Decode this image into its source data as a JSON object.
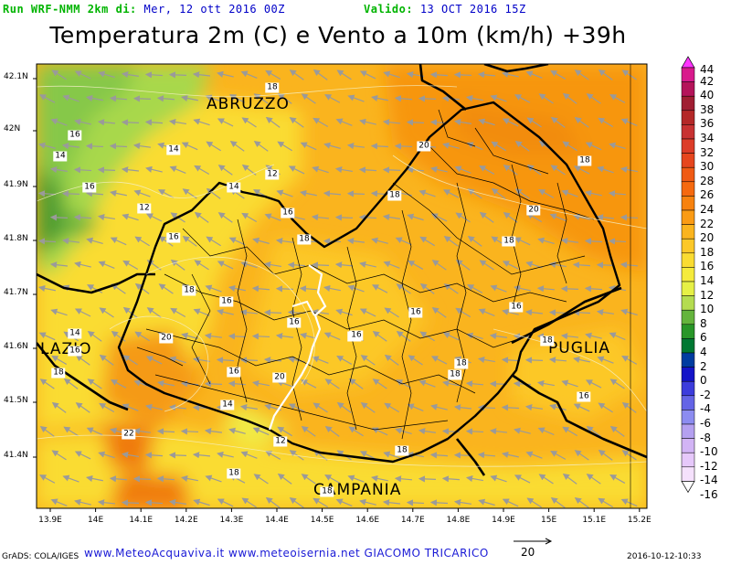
{
  "header": {
    "run_label": "Run WRF-NMM 2km di:",
    "run_date": "Mer, 12 ott 2016 00Z",
    "valid_label": "Valido:",
    "valid_date": "13 OCT 2016 15Z"
  },
  "title": "Temperatura 2m (C) e Vento a 10m (km/h) +39h",
  "lat_labels": [
    "42.1N",
    "42N",
    "41.9N",
    "41.8N",
    "41.7N",
    "41.6N",
    "41.5N",
    "41.4N"
  ],
  "lon_labels": [
    "13.9E",
    "14E",
    "14.1E",
    "14.2E",
    "14.3E",
    "14.4E",
    "14.5E",
    "14.6E",
    "14.7E",
    "14.8E",
    "14.9E",
    "15E",
    "15.1E",
    "15.2E"
  ],
  "regions": [
    "ABRUZZO",
    "LAZIO",
    "PUGLIA",
    "CAMPANIA"
  ],
  "contour_labels": [
    "18",
    "16",
    "14",
    "14",
    "16",
    "12",
    "12",
    "14",
    "16",
    "16",
    "16",
    "18",
    "18",
    "16",
    "16",
    "20",
    "20",
    "18",
    "20",
    "18",
    "18",
    "16",
    "14",
    "16",
    "18",
    "20",
    "16",
    "18",
    "18",
    "14",
    "16",
    "18",
    "18",
    "16",
    "22",
    "12",
    "18",
    "18",
    "16"
  ],
  "colorbar": {
    "labels": [
      "44",
      "42",
      "40",
      "38",
      "36",
      "34",
      "32",
      "30",
      "28",
      "26",
      "24",
      "22",
      "20",
      "18",
      "16",
      "14",
      "12",
      "10",
      "8",
      "6",
      "4",
      "2",
      "0",
      "-2",
      "-4",
      "-6",
      "-8",
      "-10",
      "-12",
      "-14",
      "-16"
    ],
    "colors": [
      "#ff33ff",
      "#d81a8c",
      "#b4145a",
      "#a01e32",
      "#b42828",
      "#c83232",
      "#dc3c28",
      "#e6461e",
      "#f05a14",
      "#f5690f",
      "#f7820f",
      "#fa9b14",
      "#fab41e",
      "#fcc828",
      "#fadc32",
      "#f5eb3c",
      "#e6f046",
      "#b4dc50",
      "#64b43c",
      "#289628",
      "#007832",
      "#003ca0",
      "#1414c8",
      "#3c3cdc",
      "#6464e6",
      "#8c8cf0",
      "#b4a0f0",
      "#d2b4f5",
      "#e6c8fa",
      "#f5e1fc",
      "#ffffff"
    ]
  },
  "footer": {
    "grads": "GrADS: COLA/IGES",
    "sites": "www.MeteoAcquaviva.it www.meteoisernia.net GIACOMO TRICARICO",
    "wind_scale": "20",
    "timestamp": "2016-10-12-10:33"
  }
}
